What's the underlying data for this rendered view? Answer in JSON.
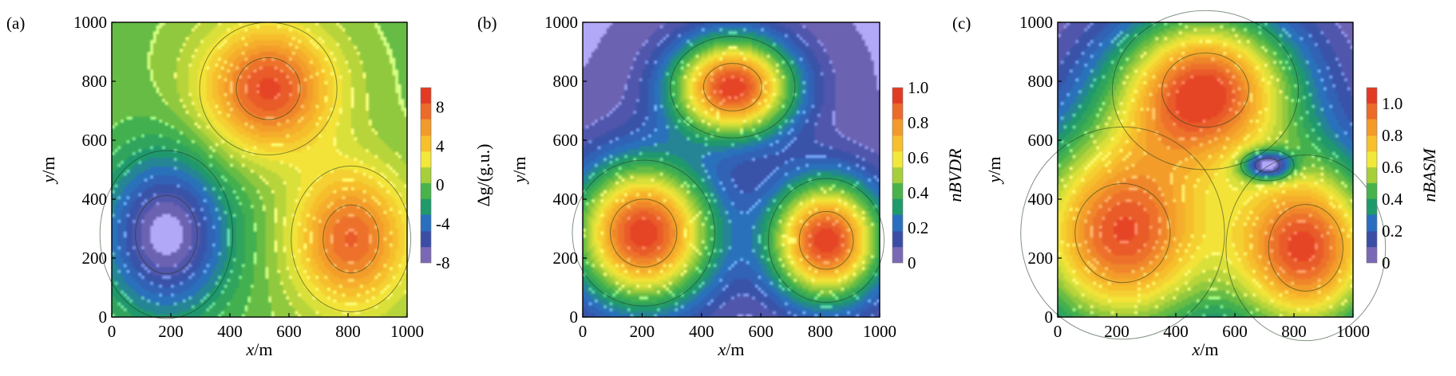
{
  "chart_data": [
    {
      "type": "heatmap",
      "panel_label": "(a)",
      "xlabel_var": "x",
      "xlabel_unit": "/m",
      "ylabel_var": "y",
      "ylabel_unit": "/m",
      "xlim": [
        0,
        1000
      ],
      "ylim": [
        0,
        1000
      ],
      "xticks": [
        "0",
        "200",
        "400",
        "600",
        "800",
        "1000"
      ],
      "yticks": [
        "0",
        "200",
        "400",
        "600",
        "800",
        "1000"
      ],
      "colorbar": {
        "label": "Δg/(g.u.)",
        "label_italic": false,
        "range": [
          -8,
          10
        ],
        "ticks": [
          "-8",
          "-4",
          "0",
          "4",
          "8"
        ],
        "tick_values": [
          -8,
          -4,
          0,
          4,
          8
        ]
      },
      "sources": [
        {
          "x": 530,
          "y": 775,
          "amplitude": 9.5,
          "sigma_x": 155,
          "sigma_y": 150
        },
        {
          "x": 810,
          "y": 265,
          "amplitude": 8.5,
          "sigma_x": 135,
          "sigma_y": 165
        },
        {
          "x": 185,
          "y": 280,
          "amplitude": -8.5,
          "sigma_x": 150,
          "sigma_y": 190
        }
      ]
    },
    {
      "type": "heatmap",
      "panel_label": "(b)",
      "xlabel_var": "x",
      "xlabel_unit": "/m",
      "ylabel_var": "y",
      "ylabel_unit": "/m",
      "xlim": [
        0,
        1000
      ],
      "ylim": [
        0,
        1000
      ],
      "xticks": [
        "0",
        "200",
        "400",
        "600",
        "800",
        "1000"
      ],
      "yticks": [
        "0",
        "200",
        "400",
        "600",
        "800",
        "1000"
      ],
      "colorbar": {
        "label": "nBVDR",
        "label_italic": true,
        "range": [
          0,
          1
        ],
        "ticks": [
          "0",
          "0.2",
          "0.4",
          "0.6",
          "0.8",
          "1.0"
        ],
        "tick_values": [
          0,
          0.2,
          0.4,
          0.6,
          0.8,
          1.0
        ]
      },
      "sources": [
        {
          "x": 505,
          "y": 780,
          "amplitude": 1.0,
          "sigma_x": 140,
          "sigma_y": 115
        },
        {
          "x": 205,
          "y": 285,
          "amplitude": 1.0,
          "sigma_x": 160,
          "sigma_y": 165
        },
        {
          "x": 820,
          "y": 260,
          "amplitude": 1.0,
          "sigma_x": 130,
          "sigma_y": 140
        }
      ]
    },
    {
      "type": "heatmap",
      "panel_label": "(c)",
      "xlabel_var": "x",
      "xlabel_unit": "/m",
      "ylabel_var": "y",
      "ylabel_unit": "/m",
      "xlim": [
        0,
        1000
      ],
      "ylim": [
        0,
        1000
      ],
      "xticks": [
        "0",
        "200",
        "400",
        "600",
        "800",
        "1000"
      ],
      "yticks": [
        "0",
        "200",
        "400",
        "600",
        "800",
        "1000"
      ],
      "colorbar": {
        "label": "nBASM",
        "label_italic": true,
        "range": [
          0,
          1.1
        ],
        "ticks": [
          "0",
          "0.2",
          "0.4",
          "0.6",
          "0.8",
          "1.0"
        ],
        "tick_values": [
          0,
          0.2,
          0.4,
          0.6,
          0.8,
          1.0
        ]
      },
      "sources": [
        {
          "x": 500,
          "y": 770,
          "amplitude": 1.05,
          "sigma_x": 210,
          "sigma_y": 180
        },
        {
          "x": 220,
          "y": 285,
          "amplitude": 1.05,
          "sigma_x": 230,
          "sigma_y": 240
        },
        {
          "x": 840,
          "y": 235,
          "amplitude": 1.05,
          "sigma_x": 180,
          "sigma_y": 210
        },
        {
          "x": 710,
          "y": 515,
          "amplitude": -0.7,
          "sigma_x": 60,
          "sigma_y": 35
        }
      ]
    }
  ],
  "colors": {
    "scale": [
      "#7b68b5",
      "#3b4ea6",
      "#2a6fbf",
      "#1f9a6a",
      "#48b34a",
      "#a6cf3a",
      "#f2e83a",
      "#f7c02c",
      "#f39a2a",
      "#ec6a2a",
      "#e33a24"
    ],
    "contour_line": "#1e3a1e",
    "contour_minor": "#ffffff"
  }
}
